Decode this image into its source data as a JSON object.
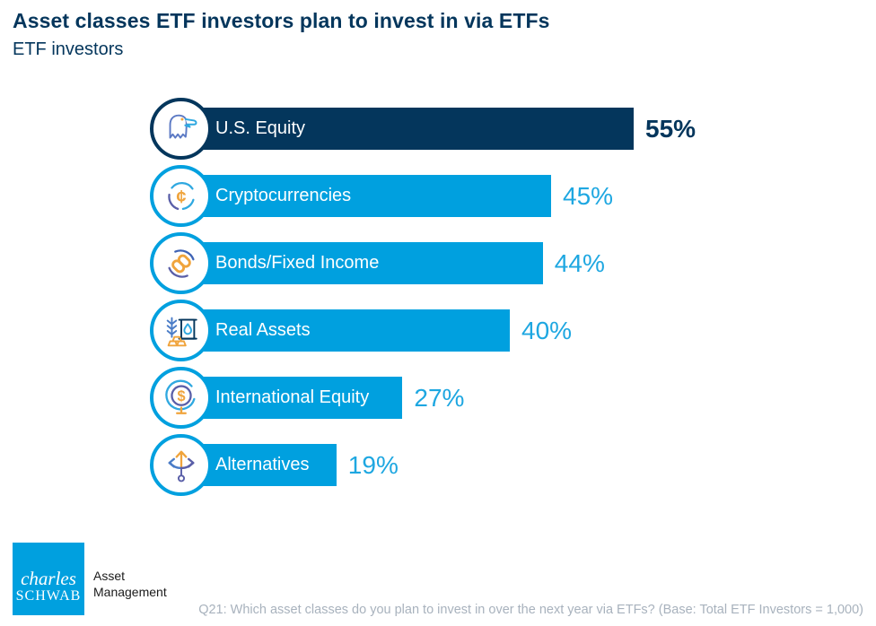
{
  "header": {
    "title": "Asset classes ETF investors plan to invest in via ETFs",
    "subtitle": "ETF investors"
  },
  "chart_data": {
    "type": "bar",
    "orientation": "horizontal",
    "title": "Asset classes ETF investors plan to invest in via ETFs",
    "subtitle": "ETF investors",
    "unit": "percent",
    "axis_shown": false,
    "categories": [
      "U.S. Equity",
      "Cryptocurrencies",
      "Bonds/Fixed Income",
      "Real Assets",
      "International Equity",
      "Alternatives"
    ],
    "values": [
      55,
      45,
      44,
      40,
      27,
      19
    ],
    "rows": [
      {
        "label": "U.S. Equity",
        "value": 55,
        "display": "55%",
        "icon": "eagle-icon",
        "emphasized": true
      },
      {
        "label": "Cryptocurrencies",
        "value": 45,
        "display": "45%",
        "icon": "crypto-cent-icon",
        "emphasized": false
      },
      {
        "label": "Bonds/Fixed Income",
        "value": 44,
        "display": "44%",
        "icon": "chain-link-icon",
        "emphasized": false
      },
      {
        "label": "Real Assets",
        "value": 40,
        "display": "40%",
        "icon": "commodities-icon",
        "emphasized": false
      },
      {
        "label": "International Equity",
        "value": 27,
        "display": "27%",
        "icon": "globe-dollar-icon",
        "emphasized": false
      },
      {
        "label": "Alternatives",
        "value": 19,
        "display": "19%",
        "icon": "branch-arrows-icon",
        "emphasized": false
      }
    ]
  },
  "footer": {
    "logo_line1": "charles",
    "logo_line2": "SCHWAB",
    "brand_line1": "Asset",
    "brand_line2": "Management",
    "footnote": "Q21: Which asset classes do you plan to invest in over the next year via ETFs? (Base: Total ETF Investors = 1,000)"
  },
  "colors": {
    "navy": "#04365C",
    "blue": "#00A0DF",
    "percent_blue": "#1EA7E1",
    "footnote_gray": "#A8B2BD",
    "icon_orange": "#F0A43C",
    "icon_purple": "#5A5FA8",
    "icon_blue": "#4A7CC7",
    "icon_lightblue": "#2FA8E0"
  }
}
